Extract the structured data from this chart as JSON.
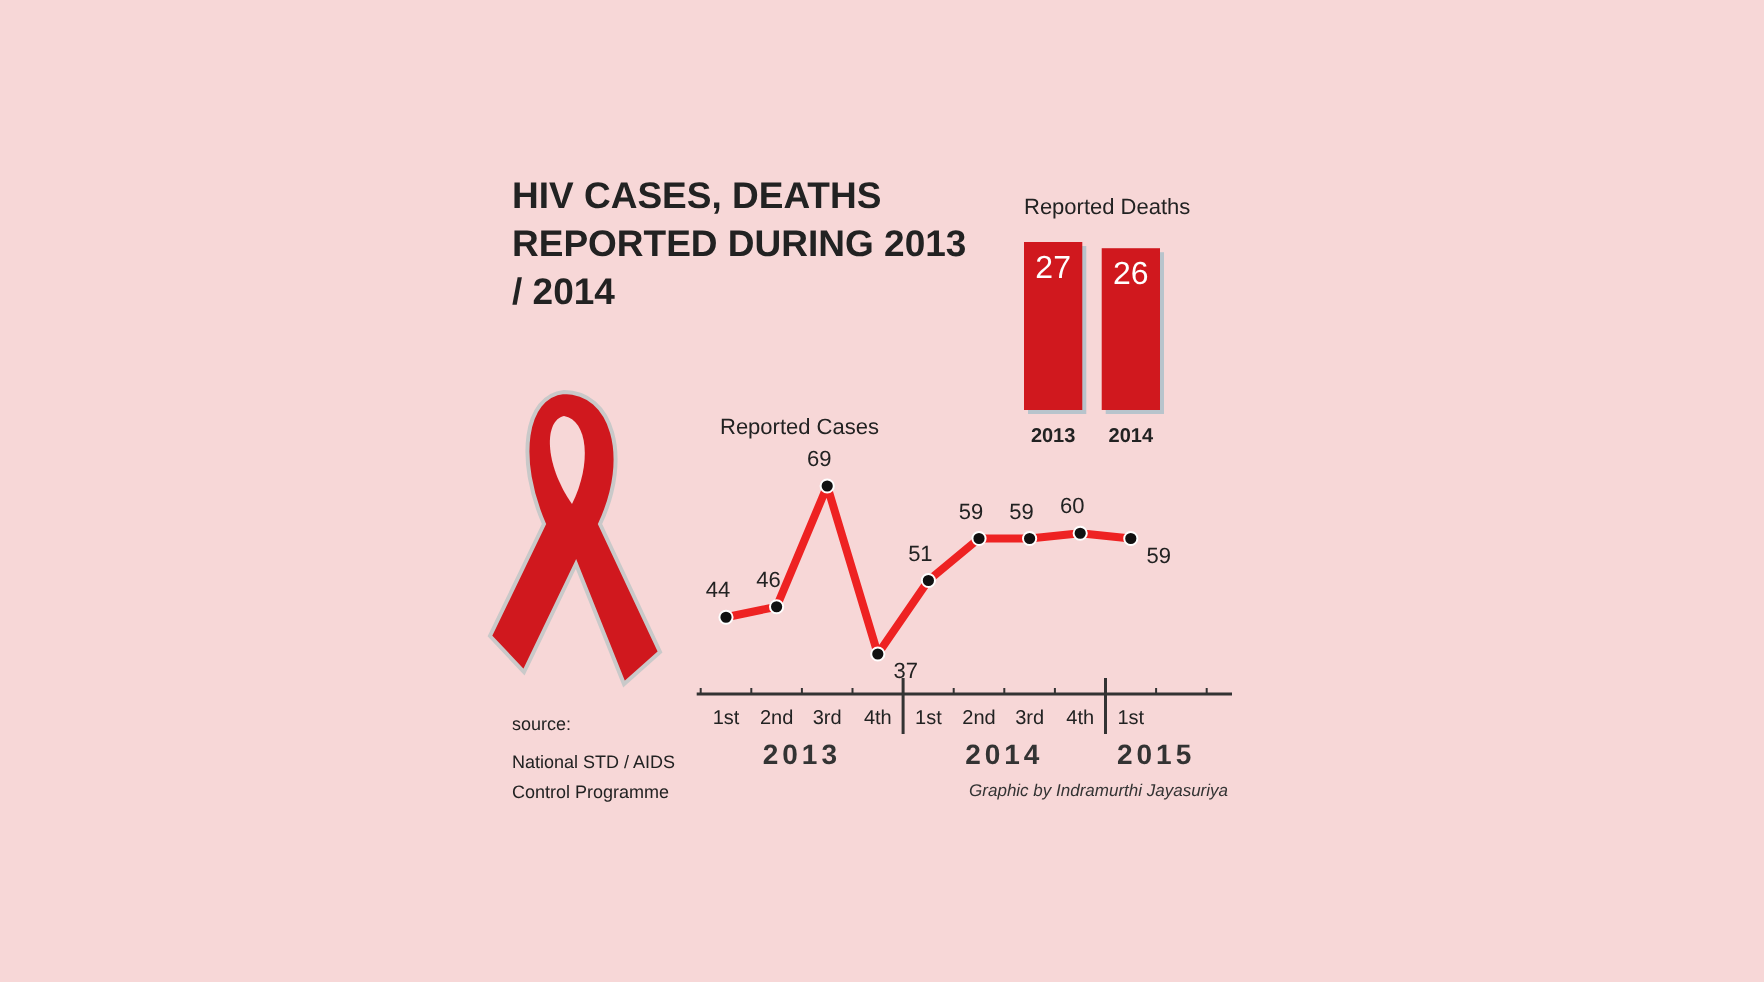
{
  "chart_data": [
    {
      "type": "other",
      "title": "HIV CASES, DEATHS REPORTED DURING 2013 / 2014",
      "annotations": [
        "source:",
        "National STD / AIDS Control Programme",
        "Graphic by Indramurthi Jayasuriya"
      ]
    },
    {
      "type": "bar",
      "title": "Reported Deaths",
      "categories": [
        "2013",
        "2014"
      ],
      "values": [
        27,
        26
      ],
      "color": "#d0181e",
      "data_labels": true
    },
    {
      "type": "line",
      "title": "Reported Cases",
      "categories": [
        "1st",
        "2nd",
        "3rd",
        "4th",
        "1st",
        "2nd",
        "3rd",
        "4th",
        "1st",
        null
      ],
      "values": [
        44,
        46,
        69,
        37,
        51,
        59,
        59,
        60,
        59,
        null
      ],
      "color": "#ee2222",
      "marker": "circle",
      "data_labels": true,
      "annotations": [
        "2013",
        "2014",
        "2015"
      ]
    }
  ]
}
